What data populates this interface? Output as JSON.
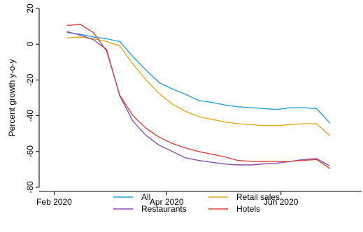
{
  "chart_data": {
    "type": "line",
    "title": "",
    "xlabel": "",
    "ylabel": "Percent growth y-o-y",
    "ylim": [
      -80,
      20
    ],
    "xlim": [
      "2020-01-24",
      "2020-07-14"
    ],
    "yticks": [
      20,
      0,
      -20,
      -40,
      -60,
      -80
    ],
    "xticks": [
      {
        "date": "2020-02-01",
        "label": "Feb 2020"
      },
      {
        "date": "2020-04-01",
        "label": "Apr 2020"
      },
      {
        "date": "2020-06-01",
        "label": "Jun 2020"
      }
    ],
    "grid": false,
    "legend_position": "bottom",
    "series": [
      {
        "name": "All",
        "color": "#29a3d6",
        "points": [
          [
            "2020-02-08",
            6.5
          ],
          [
            "2020-02-15",
            5.5
          ],
          [
            "2020-02-22",
            4.0
          ],
          [
            "2020-02-29",
            3.0
          ],
          [
            "2020-03-07",
            1.5
          ],
          [
            "2020-03-14",
            -7.0
          ],
          [
            "2020-03-21",
            -14.5
          ],
          [
            "2020-03-28",
            -21.5
          ],
          [
            "2020-04-04",
            -25.0
          ],
          [
            "2020-04-11",
            -28.0
          ],
          [
            "2020-04-18",
            -31.5
          ],
          [
            "2020-04-25",
            -32.5
          ],
          [
            "2020-05-02",
            -34.0
          ],
          [
            "2020-05-09",
            -35.0
          ],
          [
            "2020-05-16",
            -35.5
          ],
          [
            "2020-05-23",
            -36.0
          ],
          [
            "2020-05-30",
            -36.5
          ],
          [
            "2020-06-06",
            -35.5
          ],
          [
            "2020-06-13",
            -35.5
          ],
          [
            "2020-06-20",
            -36.0
          ],
          [
            "2020-06-27",
            -44.0
          ]
        ]
      },
      {
        "name": "Retail sales",
        "color": "#e8a820",
        "points": [
          [
            "2020-02-08",
            3.5
          ],
          [
            "2020-02-15",
            4.0
          ],
          [
            "2020-02-22",
            3.0
          ],
          [
            "2020-02-29",
            1.5
          ],
          [
            "2020-03-07",
            -1.0
          ],
          [
            "2020-03-14",
            -11.0
          ],
          [
            "2020-03-21",
            -20.0
          ],
          [
            "2020-03-28",
            -27.5
          ],
          [
            "2020-04-04",
            -33.5
          ],
          [
            "2020-04-11",
            -37.5
          ],
          [
            "2020-04-18",
            -40.5
          ],
          [
            "2020-04-25",
            -42.0
          ],
          [
            "2020-05-02",
            -43.5
          ],
          [
            "2020-05-09",
            -44.5
          ],
          [
            "2020-05-16",
            -45.0
          ],
          [
            "2020-05-23",
            -45.5
          ],
          [
            "2020-05-30",
            -45.5
          ],
          [
            "2020-06-06",
            -45.0
          ],
          [
            "2020-06-13",
            -44.5
          ],
          [
            "2020-06-20",
            -44.5
          ],
          [
            "2020-06-27",
            -51.0
          ]
        ]
      },
      {
        "name": "Restaurants",
        "color": "#8c4fb0",
        "points": [
          [
            "2020-02-08",
            7.0
          ],
          [
            "2020-02-15",
            5.0
          ],
          [
            "2020-02-22",
            2.5
          ],
          [
            "2020-02-29",
            -3.0
          ],
          [
            "2020-03-07",
            -29.0
          ],
          [
            "2020-03-14",
            -43.0
          ],
          [
            "2020-03-21",
            -51.0
          ],
          [
            "2020-03-28",
            -56.5
          ],
          [
            "2020-04-04",
            -60.0
          ],
          [
            "2020-04-11",
            -63.5
          ],
          [
            "2020-04-18",
            -65.0
          ],
          [
            "2020-04-25",
            -66.0
          ],
          [
            "2020-05-02",
            -67.0
          ],
          [
            "2020-05-09",
            -67.5
          ],
          [
            "2020-05-16",
            -67.5
          ],
          [
            "2020-05-23",
            -67.0
          ],
          [
            "2020-05-30",
            -66.5
          ],
          [
            "2020-06-06",
            -65.5
          ],
          [
            "2020-06-13",
            -64.5
          ],
          [
            "2020-06-20",
            -64.0
          ],
          [
            "2020-06-27",
            -68.0
          ]
        ]
      },
      {
        "name": "Hotels",
        "color": "#d9463f",
        "points": [
          [
            "2020-02-08",
            10.5
          ],
          [
            "2020-02-15",
            11.0
          ],
          [
            "2020-02-22",
            6.5
          ],
          [
            "2020-02-29",
            -4.0
          ],
          [
            "2020-03-07",
            -28.5
          ],
          [
            "2020-03-14",
            -40.0
          ],
          [
            "2020-03-21",
            -47.0
          ],
          [
            "2020-03-28",
            -52.0
          ],
          [
            "2020-04-04",
            -55.5
          ],
          [
            "2020-04-11",
            -58.0
          ],
          [
            "2020-04-18",
            -60.0
          ],
          [
            "2020-04-25",
            -61.5
          ],
          [
            "2020-05-02",
            -63.0
          ],
          [
            "2020-05-09",
            -65.0
          ],
          [
            "2020-05-16",
            -65.5
          ],
          [
            "2020-05-23",
            -65.5
          ],
          [
            "2020-05-30",
            -65.5
          ],
          [
            "2020-06-06",
            -65.5
          ],
          [
            "2020-06-13",
            -65.0
          ],
          [
            "2020-06-20",
            -64.5
          ],
          [
            "2020-06-27",
            -69.5
          ]
        ]
      }
    ]
  }
}
